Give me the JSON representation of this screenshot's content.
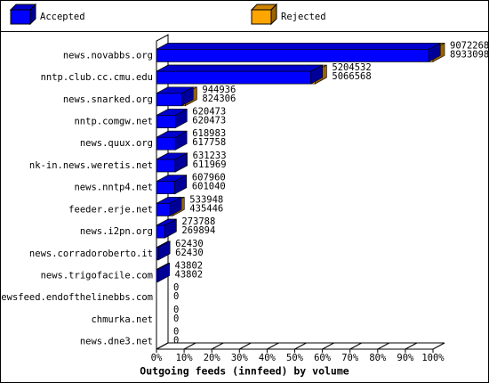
{
  "chart_data": {
    "type": "bar3d",
    "orientation": "horizontal",
    "title": "Outgoing feeds (innfeed) by volume",
    "categories": [
      "news.novabbs.org",
      "nntp.club.cc.cmu.edu",
      "news.snarked.org",
      "nntp.comgw.net",
      "news.quux.org",
      "nk-in.news.weretis.net",
      "news.nntp4.net",
      "feeder.erje.net",
      "news.i2pn.org",
      "news.corradoroberto.it",
      "news.trigofacile.com",
      "newsfeed.endofthelinebbs.com",
      "chmurka.net",
      "news.dne3.net"
    ],
    "series": [
      {
        "name": "Accepted",
        "color": "#0000ff",
        "values": [
          8933098,
          5066568,
          824306,
          620473,
          617758,
          611969,
          601040,
          435446,
          269894,
          62430,
          43802,
          0,
          0,
          0
        ]
      },
      {
        "name": "Rejected",
        "color": "#ffa500",
        "values": [
          9072268,
          5204532,
          944936,
          620473,
          618983,
          631233,
          607960,
          533948,
          273788,
          62430,
          43802,
          0,
          0,
          0
        ]
      }
    ],
    "xlim": [
      0,
      9072268
    ],
    "xticks": [
      {
        "value": 0,
        "label": "0%"
      },
      {
        "value": 907226.8,
        "label": "10%"
      },
      {
        "value": 1814453.6,
        "label": "20%"
      },
      {
        "value": 2721680.4,
        "label": "30%"
      },
      {
        "value": 3628907.2,
        "label": "40%"
      },
      {
        "value": 4536134,
        "label": "50%"
      },
      {
        "value": 5443360.8,
        "label": "60%"
      },
      {
        "value": 6350587.6,
        "label": "70%"
      },
      {
        "value": 7257814.4,
        "label": "80%"
      },
      {
        "value": 8165041.2,
        "label": "90%"
      },
      {
        "value": 9072268,
        "label": "100%"
      }
    ]
  }
}
